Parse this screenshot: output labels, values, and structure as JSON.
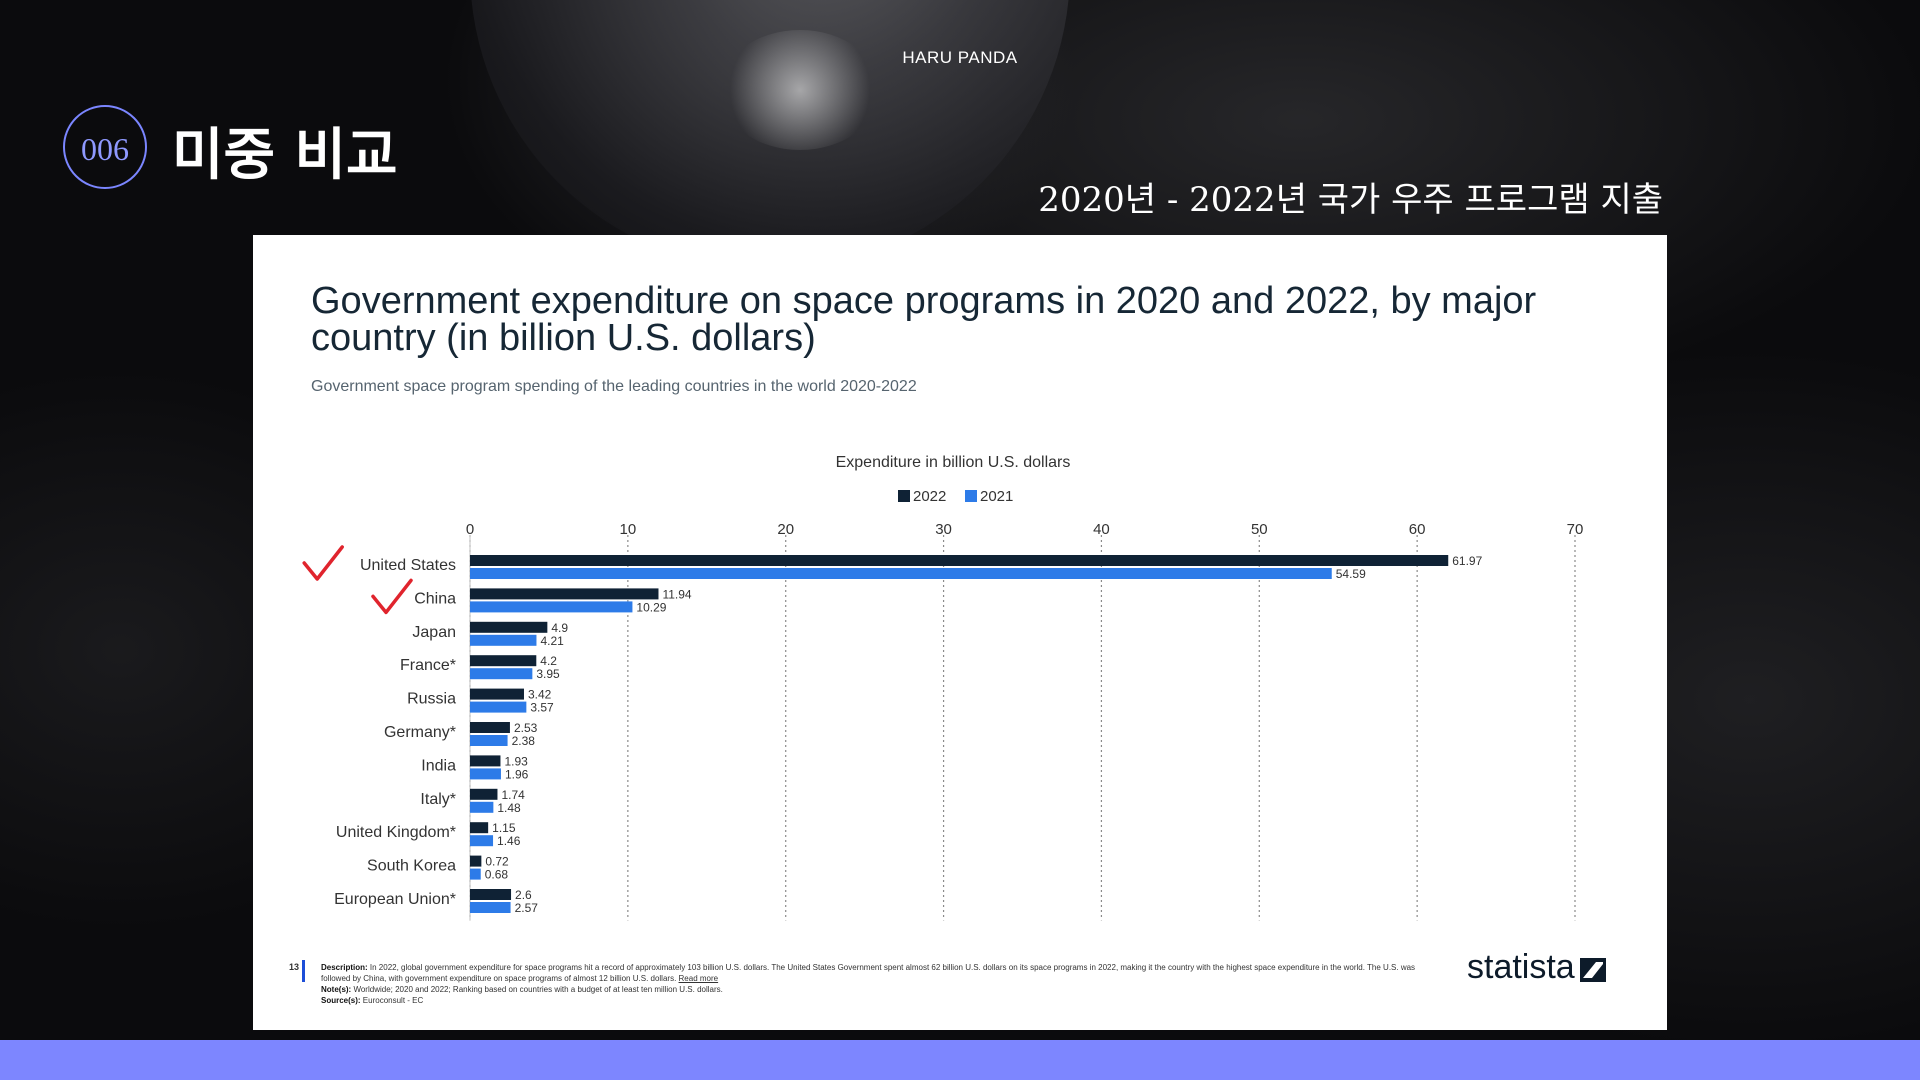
{
  "slide": {
    "brand": "HARU PANDA",
    "badge": "006",
    "title": "미중 비교",
    "subtitle": "2020년 - 2022년 국가 우주 프로그램 지출"
  },
  "colors": {
    "accent": "#7b86ff",
    "series_2022": "#0f2235",
    "series_2021": "#2d7be8",
    "check": "#e0242d"
  },
  "chart_data": {
    "type": "bar",
    "orientation": "horizontal",
    "title": "Government expenditure on space programs in 2020 and 2022, by major country (in billion U.S. dollars)",
    "subtitle": "Government space program spending of the leading countries in the world 2020-2022",
    "xlabel": "Expenditure in billion U.S. dollars",
    "xlim": [
      0,
      70
    ],
    "ticks": [
      0,
      10,
      20,
      30,
      40,
      50,
      60,
      70
    ],
    "grid": true,
    "legend_position": "top-center",
    "categories": [
      "United States",
      "China",
      "Japan",
      "France*",
      "Russia",
      "Germany*",
      "India",
      "Italy*",
      "United Kingdom*",
      "South Korea",
      "European Union*"
    ],
    "series": [
      {
        "name": "2022",
        "values": [
          61.97,
          11.94,
          4.9,
          4.2,
          3.42,
          2.53,
          1.93,
          1.74,
          1.15,
          0.72,
          2.6
        ]
      },
      {
        "name": "2021",
        "values": [
          54.59,
          10.29,
          4.21,
          3.95,
          3.57,
          2.38,
          1.96,
          1.48,
          1.46,
          0.68,
          2.57
        ]
      }
    ],
    "checked_categories": [
      "United States",
      "China"
    ]
  },
  "footer": {
    "number": "13",
    "description_label": "Description:",
    "description": "In 2022, global government expenditure for space programs hit a record of approximately 103 billion U.S. dollars. The United States Government spent almost 62 billion U.S. dollars on its space programs in 2022, making it the country with the highest space expenditure in the world. The U.S. was followed by China, with government expenditure on space programs of almost 12 billion U.S. dollars.",
    "read_more": "Read more",
    "notes_label": "Note(s):",
    "notes": "Worldwide; 2020 and 2022; Ranking based on countries with a budget of at least ten million U.S. dollars.",
    "source_label": "Source(s):",
    "source": "Euroconsult - EC",
    "logo": "statista"
  }
}
